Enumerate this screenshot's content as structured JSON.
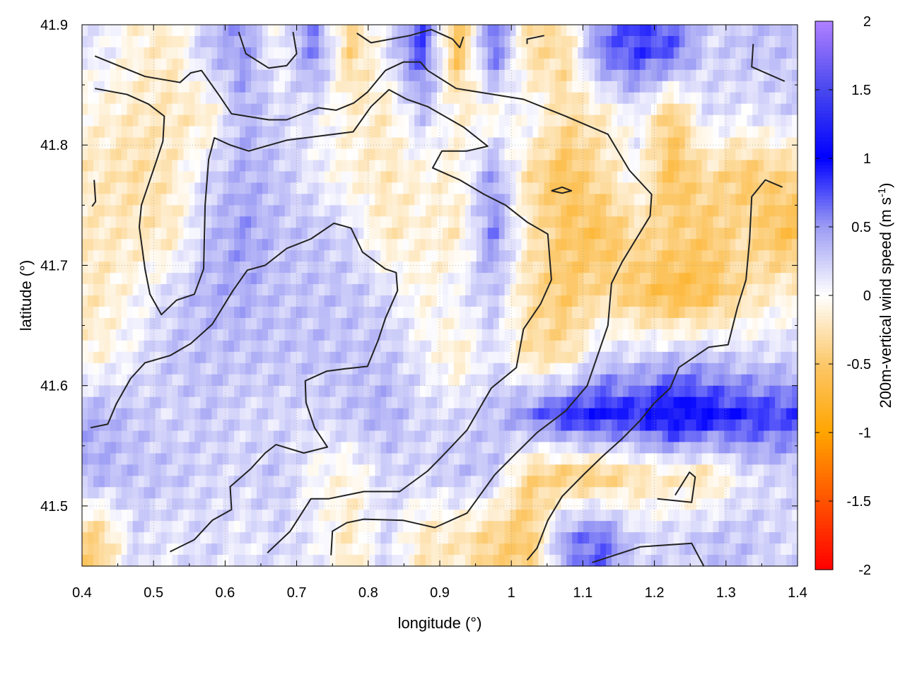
{
  "chart_data": {
    "type": "heatmap",
    "xlabel": "longitude (°)",
    "ylabel": "latitude (°)",
    "colorbar_label": "200m-vertical wind speed (m s",
    "colorbar_label_sup": "-1",
    "colorbar_label_close": ")",
    "xlim": [
      0.4,
      1.4
    ],
    "ylim": [
      41.45,
      41.9
    ],
    "clim": [
      -2,
      2
    ],
    "grid": true,
    "x_ticks": [
      0.4,
      0.5,
      0.6,
      0.7,
      0.8,
      0.9,
      1.0,
      1.1,
      1.2,
      1.3,
      1.4
    ],
    "x_tick_labels": [
      "0.4",
      "0.5",
      "0.6",
      "0.7",
      "0.8",
      "0.9",
      "1",
      "1.1",
      "1.2",
      "1.3",
      "1.4"
    ],
    "y_ticks": [
      41.5,
      41.6,
      41.7,
      41.8,
      41.9
    ],
    "y_tick_labels": [
      "41.5",
      "41.6",
      "41.7",
      "41.8",
      "41.9"
    ],
    "colorbar_ticks": [
      2,
      1.5,
      1,
      0.5,
      0,
      -0.5,
      -1,
      -1.5,
      -2
    ],
    "colorbar_tick_labels": [
      "2",
      "1.5",
      "1",
      "0.5",
      "0",
      "-0.5",
      "-1",
      "-1.5",
      "-2"
    ],
    "colormap": [
      {
        "v": -2,
        "color": "#ff0000"
      },
      {
        "v": -1,
        "color": "#ffa500"
      },
      {
        "v": -0.5,
        "color": "#fcc86a"
      },
      {
        "v": 0,
        "color": "#ffffff"
      },
      {
        "v": 0.5,
        "color": "#9c9cf4"
      },
      {
        "v": 1,
        "color": "#0000ff"
      },
      {
        "v": 1.5,
        "color": "#4848ee"
      },
      {
        "v": 2,
        "color": "#b080ff"
      }
    ],
    "grid_lon": [
      0.425,
      0.475,
      0.525,
      0.575,
      0.625,
      0.675,
      0.725,
      0.775,
      0.825,
      0.875,
      0.925,
      0.975,
      1.025,
      1.075,
      1.125,
      1.175,
      1.225,
      1.275,
      1.325,
      1.375
    ],
    "grid_lat": [
      41.875,
      41.825,
      41.775,
      41.725,
      41.675,
      41.625,
      41.575,
      41.525,
      41.475
    ],
    "values": [
      [
        0.1,
        -0.1,
        -0.2,
        0.3,
        0.5,
        0.0,
        0.6,
        -0.4,
        0.1,
        0.8,
        -0.6,
        0.7,
        -0.3,
        -0.3,
        0.6,
        0.8,
        0.7,
        0.2,
        0.3,
        0.3
      ],
      [
        -0.1,
        -0.2,
        -0.2,
        -0.2,
        0.4,
        0.2,
        0.1,
        -0.1,
        -0.2,
        0.3,
        -0.1,
        -0.1,
        0.1,
        -0.3,
        -0.2,
        0.1,
        -0.5,
        0.2,
        0.1,
        0.2
      ],
      [
        -0.2,
        -0.3,
        -0.2,
        0.2,
        0.4,
        0.3,
        0.1,
        -0.1,
        -0.2,
        -0.1,
        -0.1,
        0.5,
        -0.3,
        -0.6,
        -0.3,
        0.0,
        -0.6,
        -0.3,
        -0.5,
        -0.4
      ],
      [
        -0.2,
        -0.2,
        -0.2,
        0.3,
        0.5,
        0.3,
        0.3,
        0.2,
        -0.2,
        -0.1,
        -0.2,
        0.6,
        -0.2,
        -0.5,
        -0.6,
        -0.3,
        -0.4,
        -0.5,
        -0.3,
        -0.6
      ],
      [
        -0.2,
        0.0,
        0.2,
        0.4,
        0.4,
        0.3,
        0.3,
        0.3,
        0.2,
        -0.1,
        0.1,
        0.3,
        -0.3,
        -0.5,
        -0.3,
        -0.5,
        -0.7,
        -0.6,
        -0.3,
        -0.1
      ],
      [
        -0.1,
        0.1,
        0.3,
        0.3,
        0.3,
        0.3,
        0.3,
        0.3,
        0.3,
        0.1,
        -0.2,
        0.2,
        -0.3,
        -0.3,
        0.2,
        0.2,
        0.3,
        0.3,
        0.2,
        0.2
      ],
      [
        0.4,
        0.3,
        0.2,
        0.3,
        0.2,
        0.2,
        0.2,
        0.3,
        0.4,
        0.2,
        0.2,
        0.3,
        0.6,
        0.9,
        1.0,
        0.9,
        1.2,
        1.0,
        0.9,
        0.8
      ],
      [
        0.4,
        0.3,
        0.3,
        0.2,
        0.2,
        0.3,
        0.0,
        -0.1,
        0.2,
        0.2,
        0.3,
        0.3,
        -0.4,
        -0.5,
        -0.5,
        -0.3,
        -0.2,
        -0.3,
        0.1,
        0.2
      ],
      [
        -0.4,
        0.2,
        0.1,
        0.2,
        0.1,
        0.2,
        0.1,
        -0.2,
        0.2,
        -0.2,
        -0.2,
        -0.4,
        -0.5,
        0.5,
        0.7,
        0.2,
        0.2,
        0.3,
        0.3,
        0.2
      ]
    ],
    "contours": [
      [
        [
          0.418,
          41.874
        ],
        [
          0.488,
          41.857
        ],
        [
          0.537,
          41.852
        ],
        [
          0.552,
          41.86
        ],
        [
          0.567,
          41.862
        ],
        [
          0.592,
          41.841
        ],
        [
          0.609,
          41.826
        ],
        [
          0.661,
          41.821
        ],
        [
          0.686,
          41.821
        ],
        [
          0.73,
          41.831
        ],
        [
          0.755,
          41.829
        ],
        [
          0.78,
          41.835
        ],
        [
          0.799,
          41.844
        ],
        [
          0.824,
          41.862
        ],
        [
          0.849,
          41.869
        ],
        [
          0.873,
          41.869
        ],
        [
          0.883,
          41.862
        ],
        [
          0.923,
          41.847
        ],
        [
          1.017,
          41.838
        ],
        [
          1.076,
          41.824
        ],
        [
          1.135,
          41.809
        ],
        [
          1.165,
          41.779
        ],
        [
          1.196,
          41.759
        ],
        [
          1.194,
          41.741
        ],
        [
          1.155,
          41.703
        ],
        [
          1.14,
          41.685
        ],
        [
          1.135,
          41.65
        ],
        [
          1.106,
          41.6
        ],
        [
          1.076,
          41.579
        ],
        [
          1.036,
          41.561
        ],
        [
          1.007,
          41.544
        ],
        [
          0.977,
          41.526
        ],
        [
          0.938,
          41.494
        ],
        [
          0.893,
          41.482
        ],
        [
          0.849,
          41.488
        ],
        [
          0.794,
          41.489
        ],
        [
          0.77,
          41.486
        ],
        [
          0.75,
          41.479
        ],
        [
          0.748,
          41.459
        ]
      ],
      [
        [
          0.418,
          41.847
        ],
        [
          0.463,
          41.842
        ],
        [
          0.493,
          41.834
        ],
        [
          0.515,
          41.824
        ],
        [
          0.513,
          41.803
        ],
        [
          0.503,
          41.785
        ],
        [
          0.483,
          41.75
        ],
        [
          0.48,
          41.732
        ],
        [
          0.488,
          41.697
        ],
        [
          0.495,
          41.676
        ],
        [
          0.511,
          41.659
        ],
        [
          0.532,
          41.671
        ],
        [
          0.557,
          41.676
        ],
        [
          0.57,
          41.697
        ],
        [
          0.572,
          41.75
        ],
        [
          0.577,
          41.788
        ],
        [
          0.585,
          41.806
        ],
        [
          0.607,
          41.8
        ],
        [
          0.633,
          41.795
        ],
        [
          0.686,
          41.804
        ],
        [
          0.779,
          41.811
        ],
        [
          0.804,
          41.832
        ],
        [
          0.829,
          41.846
        ],
        [
          0.854,
          41.838
        ],
        [
          0.883,
          41.832
        ],
        [
          0.933,
          41.815
        ],
        [
          0.967,
          41.799
        ],
        [
          0.938,
          41.795
        ],
        [
          0.903,
          41.795
        ],
        [
          0.89,
          41.781
        ],
        [
          0.928,
          41.771
        ],
        [
          0.962,
          41.759
        ],
        [
          0.992,
          41.75
        ],
        [
          1.022,
          41.736
        ],
        [
          1.051,
          41.726
        ],
        [
          1.056,
          41.688
        ],
        [
          1.041,
          41.668
        ],
        [
          1.017,
          41.647
        ],
        [
          1.007,
          41.615
        ],
        [
          0.972,
          41.598
        ],
        [
          0.938,
          41.563
        ],
        [
          0.903,
          41.541
        ],
        [
          0.883,
          41.529
        ],
        [
          0.844,
          41.512
        ],
        [
          0.794,
          41.512
        ],
        [
          0.745,
          41.506
        ],
        [
          0.72,
          41.506
        ],
        [
          0.691,
          41.479
        ],
        [
          0.659,
          41.461
        ]
      ],
      [
        [
          0.412,
          41.565
        ],
        [
          0.436,
          41.568
        ],
        [
          0.448,
          41.585
        ],
        [
          0.468,
          41.606
        ],
        [
          0.488,
          41.619
        ],
        [
          0.523,
          41.625
        ],
        [
          0.552,
          41.635
        ],
        [
          0.582,
          41.651
        ],
        [
          0.611,
          41.679
        ],
        [
          0.631,
          41.696
        ],
        [
          0.656,
          41.7
        ],
        [
          0.686,
          41.714
        ],
        [
          0.72,
          41.722
        ],
        [
          0.752,
          41.735
        ],
        [
          0.776,
          41.731
        ],
        [
          0.792,
          41.711
        ],
        [
          0.824,
          41.697
        ],
        [
          0.839,
          41.694
        ],
        [
          0.841,
          41.679
        ],
        [
          0.824,
          41.656
        ],
        [
          0.814,
          41.638
        ],
        [
          0.799,
          41.616
        ],
        [
          0.768,
          41.614
        ],
        [
          0.742,
          41.612
        ],
        [
          0.712,
          41.604
        ],
        [
          0.713,
          41.586
        ],
        [
          0.725,
          41.565
        ],
        [
          0.743,
          41.549
        ],
        [
          0.71,
          41.544
        ],
        [
          0.671,
          41.551
        ],
        [
          0.656,
          41.544
        ],
        [
          0.636,
          41.531
        ],
        [
          0.607,
          41.516
        ],
        [
          0.609,
          41.497
        ],
        [
          0.582,
          41.488
        ],
        [
          0.557,
          41.472
        ],
        [
          0.523,
          41.462
        ]
      ],
      [
        [
          1.379,
          41.765
        ],
        [
          1.355,
          41.771
        ],
        [
          1.336,
          41.757
        ],
        [
          1.333,
          41.721
        ],
        [
          1.328,
          41.688
        ],
        [
          1.316,
          41.665
        ],
        [
          1.303,
          41.634
        ],
        [
          1.276,
          41.632
        ],
        [
          1.234,
          41.615
        ],
        [
          1.222,
          41.598
        ],
        [
          1.199,
          41.585
        ],
        [
          1.18,
          41.571
        ],
        [
          1.155,
          41.556
        ],
        [
          1.127,
          41.541
        ],
        [
          1.101,
          41.526
        ],
        [
          1.071,
          41.508
        ],
        [
          1.051,
          41.488
        ],
        [
          1.036,
          41.465
        ],
        [
          1.022,
          41.455
        ]
      ],
      [
        [
          1.113,
          41.453
        ],
        [
          1.18,
          41.466
        ],
        [
          1.252,
          41.469
        ],
        [
          1.269,
          41.45
        ]
      ],
      [
        [
          0.619,
          41.894
        ],
        [
          0.629,
          41.876
        ],
        [
          0.661,
          41.864
        ],
        [
          0.686,
          41.866
        ],
        [
          0.7,
          41.876
        ],
        [
          0.695,
          41.894
        ]
      ],
      [
        [
          0.784,
          41.893
        ],
        [
          0.804,
          41.885
        ],
        [
          0.858,
          41.891
        ],
        [
          0.888,
          41.896
        ],
        [
          0.918,
          41.888
        ],
        [
          0.928,
          41.881
        ],
        [
          0.933,
          41.89
        ]
      ],
      [
        [
          1.338,
          41.884
        ],
        [
          1.336,
          41.865
        ],
        [
          1.382,
          41.853
        ]
      ],
      [
        [
          1.204,
          41.506
        ],
        [
          1.252,
          41.503
        ],
        [
          1.257,
          41.524
        ],
        [
          1.249,
          41.528
        ],
        [
          1.229,
          41.509
        ]
      ],
      [
        [
          1.056,
          41.762
        ],
        [
          1.071,
          41.765
        ],
        [
          1.084,
          41.762
        ],
        [
          1.071,
          41.76
        ],
        [
          1.056,
          41.762
        ]
      ],
      [
        [
          0.417,
          41.771
        ],
        [
          0.419,
          41.753
        ],
        [
          0.414,
          41.749
        ]
      ],
      [
        [
          1.022,
          41.884
        ],
        [
          1.022,
          41.888
        ],
        [
          1.046,
          41.891
        ]
      ]
    ]
  }
}
